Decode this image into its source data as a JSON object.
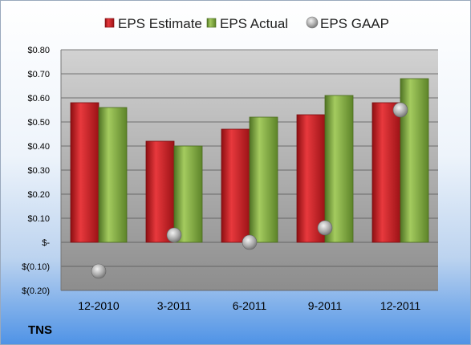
{
  "label": "TNS",
  "chart_data": {
    "type": "bar",
    "categories": [
      "12-2010",
      "3-2011",
      "6-2011",
      "9-2011",
      "12-2011"
    ],
    "series": [
      {
        "name": "EPS Estimate",
        "kind": "bar",
        "color": "#c0171c",
        "values": [
          0.58,
          0.42,
          0.47,
          0.53,
          0.58
        ]
      },
      {
        "name": "EPS Actual",
        "kind": "bar",
        "color": "#7aa23a",
        "values": [
          0.56,
          0.4,
          0.52,
          0.61,
          0.68
        ]
      },
      {
        "name": "EPS GAAP",
        "kind": "marker",
        "color": "#a8a8a8",
        "values": [
          -0.12,
          0.03,
          0.0,
          0.06,
          0.55
        ]
      }
    ],
    "yticks": [
      "$0.80",
      "$0.70",
      "$0.60",
      "$0.50",
      "$0.40",
      "$0.30",
      "$0.20",
      "$0.10",
      "$-",
      "$(0.10)",
      "$(0.20)"
    ],
    "ylim": [
      -0.2,
      0.8
    ],
    "legend": "top",
    "grid": true
  }
}
